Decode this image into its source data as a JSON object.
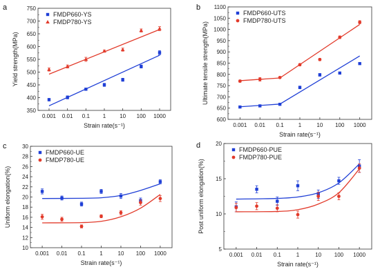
{
  "colors": {
    "blue": "#1f3fd6",
    "red": "#e23a2a"
  },
  "chart_data": [
    {
      "panel": "a",
      "type": "scatter",
      "xlabel": "Strain rate(s⁻¹)",
      "ylabel": "Yield strength(MPa)",
      "x_scale": "log",
      "x_ticks": [
        0.001,
        0.01,
        0.1,
        1,
        10,
        100,
        1000
      ],
      "x_tick_labels": [
        "0.001",
        "0.01",
        "0.1",
        "1",
        "10",
        "100",
        "1000"
      ],
      "ylim": [
        350,
        750
      ],
      "y_ticks": [
        350,
        400,
        450,
        500,
        550,
        600,
        650,
        700,
        750
      ],
      "legend_position": "top-left",
      "series": [
        {
          "name": "FMDP660-YS",
          "color": "blue",
          "marker": "square",
          "x": [
            0.001,
            0.01,
            0.1,
            1,
            10,
            100,
            1000
          ],
          "y": [
            392,
            401,
            433,
            450,
            470,
            522,
            576
          ],
          "err": [
            5,
            6,
            4,
            6,
            6,
            6,
            8
          ],
          "fit": [
            [
              0.001,
              368
            ],
            [
              1000,
              566
            ]
          ]
        },
        {
          "name": "FMDP780-YS",
          "color": "red",
          "marker": "triangle",
          "x": [
            0.001,
            0.01,
            0.1,
            1,
            10,
            100,
            1000
          ],
          "y": [
            510,
            522,
            550,
            582,
            588,
            663,
            670
          ],
          "err": [
            6,
            6,
            8,
            4,
            6,
            6,
            8
          ],
          "fit": [
            [
              0.001,
              492
            ],
            [
              1000,
              667
            ]
          ]
        }
      ]
    },
    {
      "panel": "b",
      "type": "scatter",
      "xlabel": "Strain rate(s⁻¹)",
      "ylabel": "Ultimate tensile strength(MPa)",
      "x_scale": "log",
      "x_ticks": [
        0.001,
        0.01,
        0.1,
        1,
        10,
        100,
        1000
      ],
      "x_tick_labels": [
        "0.001",
        "0.01",
        "0.1",
        "1",
        "10",
        "100",
        "1000"
      ],
      "ylim": [
        600,
        1100
      ],
      "y_ticks": [
        600,
        650,
        700,
        750,
        800,
        850,
        900,
        950,
        1000,
        1050,
        1100
      ],
      "legend_position": "top-left",
      "series": [
        {
          "name": "FMDP660-UTS",
          "color": "blue",
          "marker": "square",
          "x": [
            0.001,
            0.01,
            0.1,
            1,
            10,
            100,
            1000
          ],
          "y": [
            655,
            660,
            667,
            742,
            798,
            806,
            848
          ],
          "err": [
            4,
            4,
            3,
            6,
            6,
            3,
            4
          ],
          "fit": [
            [
              0.001,
              656
            ],
            [
              0.1,
              668
            ],
            [
              1000,
              882
            ]
          ]
        },
        {
          "name": "FMDP780-UTS",
          "color": "red",
          "marker": "circle",
          "x": [
            0.001,
            0.01,
            0.1,
            1,
            10,
            100,
            1000
          ],
          "y": [
            770,
            778,
            786,
            843,
            866,
            965,
            1032
          ],
          "err": [
            5,
            8,
            4,
            5,
            5,
            6,
            7
          ],
          "fit": [
            [
              0.001,
              772
            ],
            [
              0.1,
              784
            ],
            [
              1000,
              1022
            ]
          ]
        }
      ]
    },
    {
      "panel": "c",
      "type": "scatter",
      "xlabel": "Strain rate(s⁻¹)",
      "ylabel": "Uniform elongation(%)",
      "x_scale": "log",
      "x_ticks": [
        0.001,
        0.01,
        0.1,
        1,
        10,
        100,
        1000
      ],
      "x_tick_labels": [
        "0.001",
        "0.01",
        "0.1",
        "1",
        "10",
        "100",
        "1000"
      ],
      "ylim": [
        10,
        30
      ],
      "y_ticks": [
        10,
        12,
        14,
        16,
        18,
        20,
        22,
        24,
        26,
        28,
        30
      ],
      "legend_position": "top-left",
      "series": [
        {
          "name": "FMDP660-UE",
          "color": "blue",
          "marker": "square",
          "x": [
            0.001,
            0.01,
            0.1,
            1,
            10,
            100,
            1000
          ],
          "y": [
            21.1,
            19.8,
            18.6,
            21.1,
            20.2,
            19.3,
            23.0
          ],
          "err": [
            0.5,
            0.4,
            0.4,
            0.4,
            0.5,
            0.5,
            0.4
          ],
          "fit_curve": [
            [
              0.001,
              19.7
            ],
            [
              0.1,
              19.75
            ],
            [
              1,
              19.85
            ],
            [
              10,
              20.3
            ],
            [
              100,
              21.3
            ],
            [
              1000,
              22.6
            ]
          ]
        },
        {
          "name": "FMDP780-UE",
          "color": "red",
          "marker": "circle",
          "x": [
            0.001,
            0.01,
            0.1,
            1,
            10,
            100,
            1000
          ],
          "y": [
            16.1,
            15.6,
            14.2,
            16.2,
            16.9,
            18.9,
            19.7
          ],
          "err": [
            0.5,
            0.4,
            0.3,
            0.3,
            0.4,
            0.5,
            0.6
          ],
          "fit_curve": [
            [
              0.001,
              14.9
            ],
            [
              0.1,
              14.95
            ],
            [
              1,
              15.2
            ],
            [
              10,
              16.1
            ],
            [
              100,
              17.8
            ],
            [
              1000,
              20.5
            ]
          ]
        }
      ]
    },
    {
      "panel": "d",
      "type": "scatter",
      "xlabel": "Strain rate(s⁻¹)",
      "ylabel": "Post uniform elongation(%)",
      "x_scale": "log",
      "x_ticks": [
        0.001,
        0.01,
        0.1,
        1,
        10,
        100,
        1000
      ],
      "x_tick_labels": [
        "0.001",
        "0.01",
        "0.1",
        "1",
        "10",
        "100",
        "1000"
      ],
      "ylim": [
        5,
        20
      ],
      "y_ticks": [
        5,
        10,
        15,
        20
      ],
      "legend_position": "top-left",
      "series": [
        {
          "name": "FMDP660-PUE",
          "color": "blue",
          "marker": "square",
          "x": [
            0.001,
            0.01,
            0.1,
            1,
            10,
            100,
            1000
          ],
          "y": [
            11.0,
            13.5,
            11.8,
            14.0,
            12.8,
            14.7,
            16.8
          ],
          "err": [
            0.7,
            0.5,
            0.6,
            0.7,
            0.6,
            0.5,
            0.9
          ],
          "fit_curve": [
            [
              0.001,
              12.1
            ],
            [
              0.1,
              12.2
            ],
            [
              1,
              12.4
            ],
            [
              10,
              13.0
            ],
            [
              100,
              14.4
            ],
            [
              1000,
              17.1
            ]
          ]
        },
        {
          "name": "FMDP780-PUE",
          "color": "red",
          "marker": "circle",
          "x": [
            0.001,
            0.01,
            0.1,
            1,
            10,
            100,
            1000
          ],
          "y": [
            10.9,
            11.1,
            10.8,
            9.9,
            12.5,
            12.5,
            16.5
          ],
          "err": [
            0.6,
            0.5,
            0.5,
            0.5,
            0.6,
            0.5,
            0.6
          ],
          "fit_curve": [
            [
              0.001,
              10.3
            ],
            [
              0.1,
              10.35
            ],
            [
              1,
              10.6
            ],
            [
              10,
              11.4
            ],
            [
              100,
              13.0
            ],
            [
              1000,
              16.4
            ]
          ]
        }
      ]
    }
  ]
}
